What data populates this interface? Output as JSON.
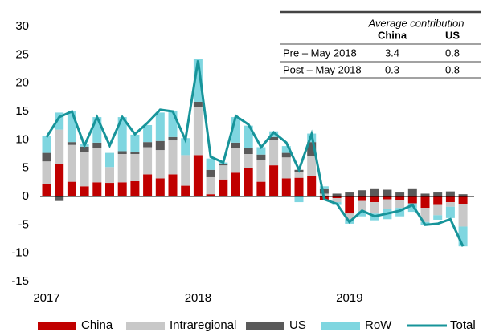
{
  "chart_data": {
    "type": "stacked_bar_line",
    "categories": [
      "2017",
      null,
      null,
      null,
      null,
      null,
      null,
      null,
      null,
      null,
      null,
      null,
      "2018",
      null,
      null,
      null,
      null,
      null,
      null,
      null,
      null,
      null,
      null,
      null,
      "2019",
      null,
      null,
      null,
      null,
      null,
      null,
      null,
      null,
      null
    ],
    "series": [
      {
        "name": "China",
        "color": "#c00000",
        "values": [
          2.2,
          5.8,
          2.6,
          1.8,
          2.5,
          2.4,
          2.5,
          2.7,
          3.9,
          3.2,
          3.9,
          1.9,
          7.3,
          0.4,
          3.0,
          4.2,
          5.0,
          2.6,
          5.5,
          3.2,
          3.3,
          3.6,
          -0.6,
          -0.3,
          -3.0,
          -0.8,
          -1.0,
          -0.5,
          -0.7,
          -1.2,
          -2.0,
          -1.5,
          -1.0,
          -1.3
        ]
      },
      {
        "name": "Intraregional",
        "color": "#c8c8c8",
        "values": [
          4.0,
          6.0,
          6.5,
          6.0,
          6.0,
          2.8,
          5.0,
          4.8,
          4.8,
          5.0,
          6.0,
          5.4,
          8.5,
          3.0,
          2.5,
          4.3,
          2.5,
          3.8,
          4.5,
          3.7,
          1.0,
          3.5,
          0.5,
          -0.7,
          -1.0,
          -1.8,
          -2.0,
          -1.7,
          -1.3,
          0.0,
          -2.5,
          -1.8,
          -0.8,
          -4.0
        ]
      },
      {
        "name": "US",
        "color": "#5a5a5a",
        "values": [
          1.5,
          -0.8,
          0.5,
          1.0,
          1.0,
          0.0,
          0.5,
          0.4,
          0.9,
          1.6,
          0.6,
          0.0,
          0.9,
          1.3,
          0.3,
          1.0,
          1.0,
          1.0,
          0.5,
          0.8,
          0.4,
          2.5,
          0.8,
          0.5,
          0.7,
          1.1,
          1.3,
          1.2,
          0.7,
          1.3,
          0.5,
          0.7,
          0.9,
          0.4
        ]
      },
      {
        "name": "RoW",
        "color": "#7fd6e0",
        "values": [
          3.0,
          3.0,
          5.5,
          0.5,
          4.5,
          2.5,
          6.0,
          3.0,
          3.0,
          5.0,
          4.5,
          3.0,
          7.5,
          2.0,
          0.2,
          4.5,
          4.0,
          1.3,
          1.0,
          1.2,
          -1.0,
          1.5,
          0.5,
          -0.5,
          -0.8,
          -0.9,
          -1.2,
          -1.8,
          -1.5,
          -1.5,
          -0.5,
          -0.8,
          -2.0,
          -3.5
        ]
      },
      {
        "name": "Total",
        "color": "#17949a",
        "line": true,
        "values": [
          10.5,
          14.0,
          15.0,
          9.0,
          14.0,
          9.0,
          14.0,
          11.0,
          13.0,
          15.3,
          15.0,
          10.0,
          24.0,
          7.0,
          6.0,
          14.2,
          12.7,
          8.7,
          11.3,
          9.5,
          4.7,
          11.0,
          -0.5,
          -1.3,
          -4.5,
          -2.5,
          -3.5,
          -3.0,
          -2.5,
          -1.5,
          -5.0,
          -4.8,
          -4.0,
          -8.8
        ]
      }
    ],
    "ylim": [
      -15,
      30
    ],
    "yticks": [
      -15,
      -10,
      -5,
      0,
      5,
      10,
      15,
      20,
      25,
      30
    ],
    "table": {
      "title": "Average contribution",
      "columns": [
        "China",
        "US"
      ],
      "rows": [
        {
          "label": "Pre – May 2018",
          "values": [
            3.4,
            0.8
          ]
        },
        {
          "label": "Post – May 2018",
          "values": [
            0.3,
            0.8
          ]
        }
      ]
    }
  }
}
